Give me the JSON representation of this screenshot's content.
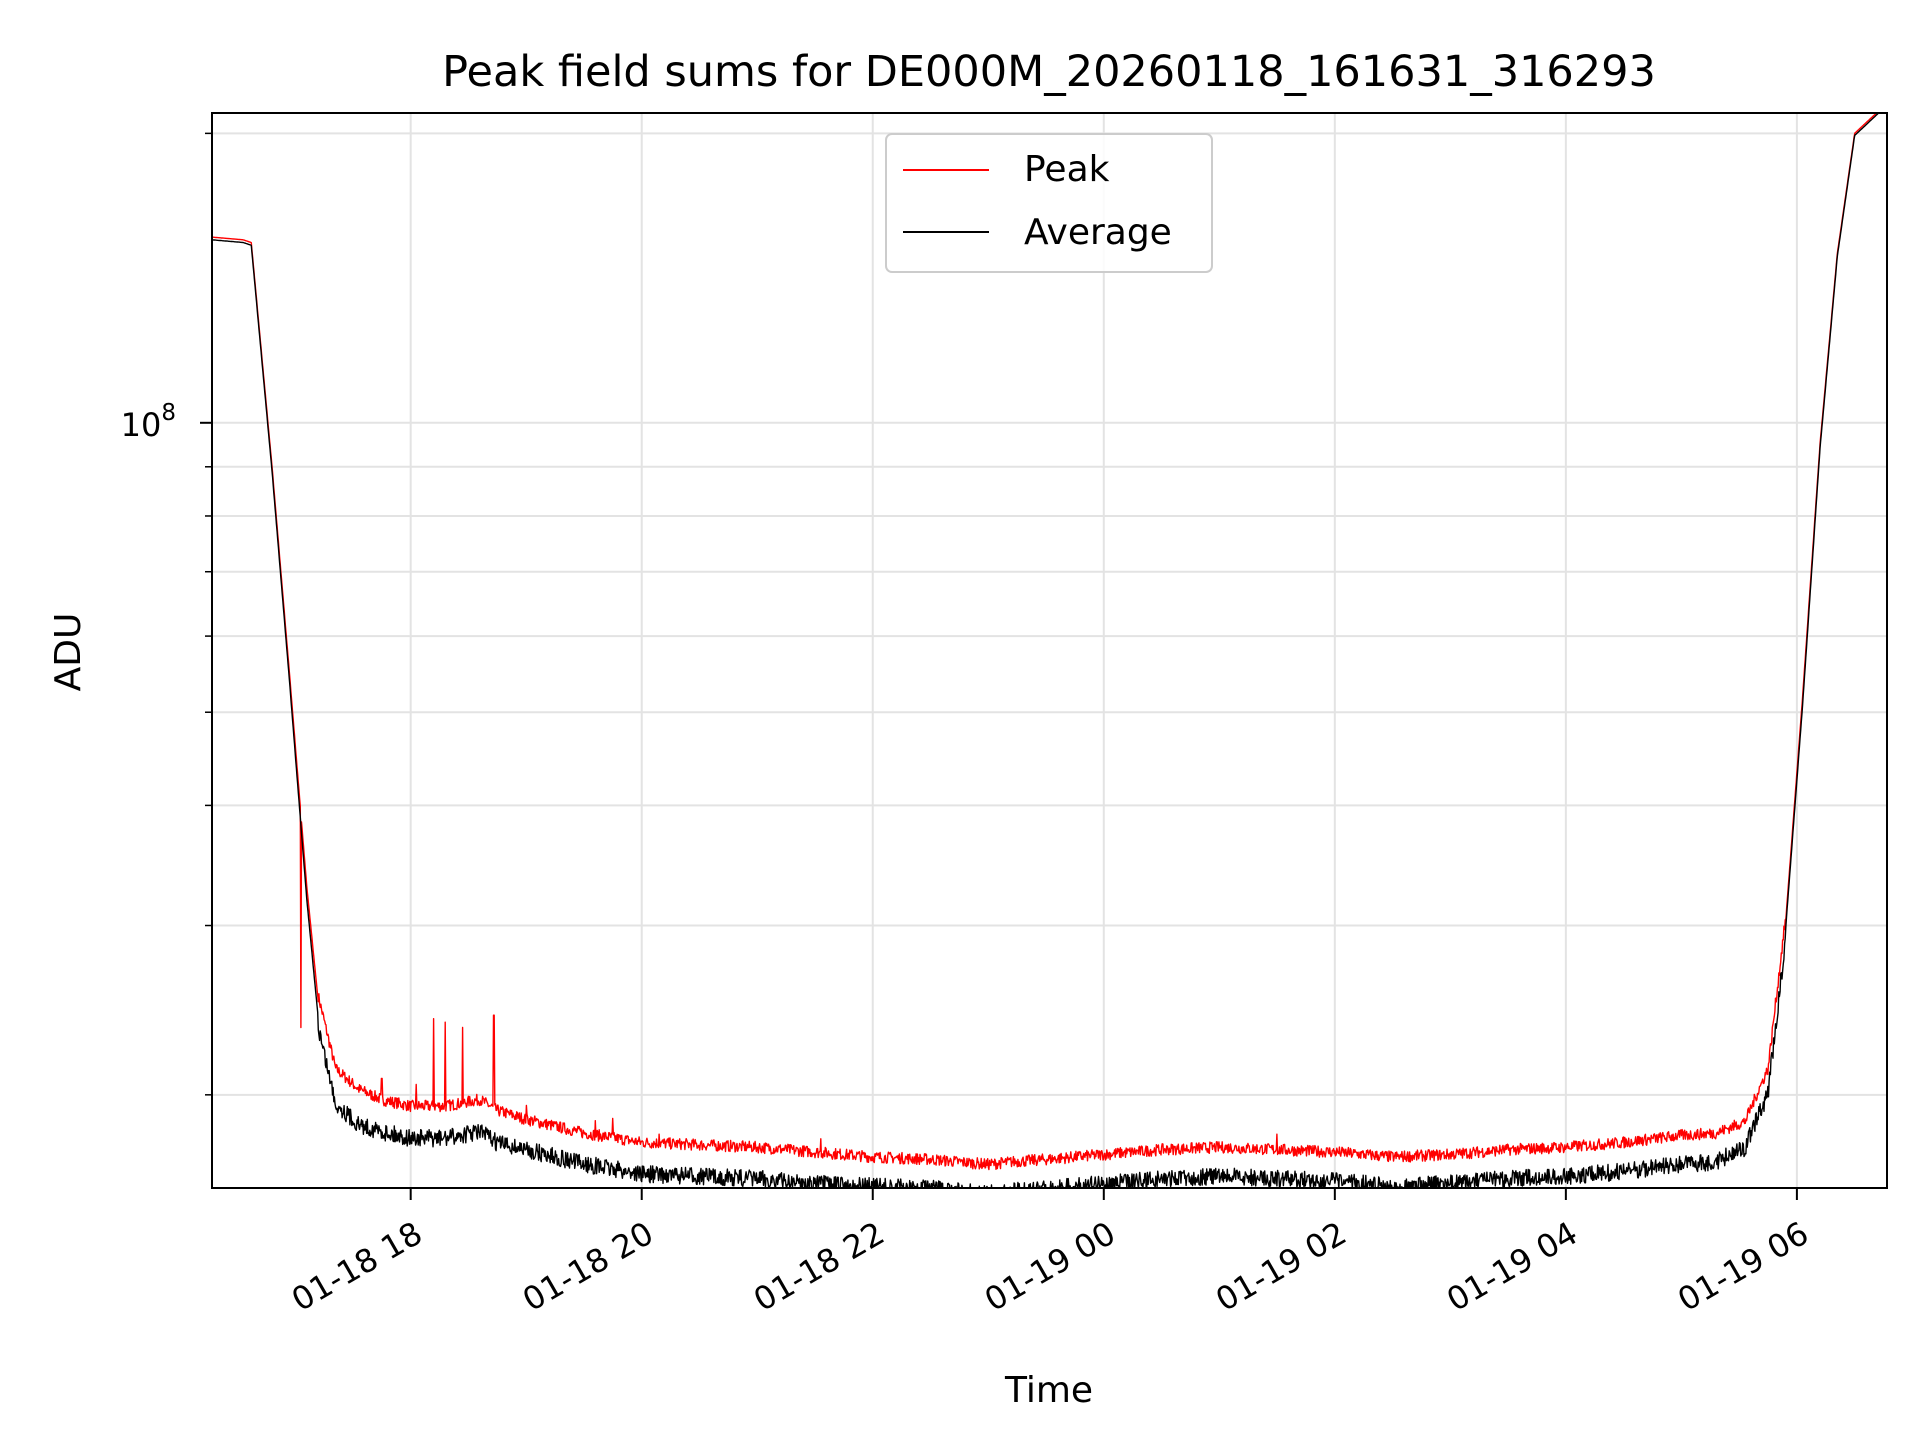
{
  "chart_data": {
    "type": "line",
    "title": "Peak field sums for DE000M_20260118_161631_316293",
    "xlabel": "Time",
    "ylabel": "ADU",
    "y_scale": "log",
    "y_major_tick_label": {
      "base": "10",
      "exponent": "8",
      "value": 100000000
    },
    "ylim": [
      16000000,
      210000000
    ],
    "xlim_hours_from_0118_0000": [
      16.28,
      30.78
    ],
    "x_ticks": [
      {
        "hour": 18,
        "label": "01-18 18"
      },
      {
        "hour": 20,
        "label": "01-18 20"
      },
      {
        "hour": 22,
        "label": "01-18 22"
      },
      {
        "hour": 24,
        "label": "01-19 00"
      },
      {
        "hour": 26,
        "label": "01-19 02"
      },
      {
        "hour": 28,
        "label": "01-19 04"
      },
      {
        "hour": 30,
        "label": "01-19 06"
      }
    ],
    "grid": true,
    "legend": {
      "position": "top-center",
      "entries": [
        "Peak",
        "Average"
      ]
    },
    "series": [
      {
        "name": "Peak",
        "color": "#ff0000",
        "x_hours": [
          16.28,
          16.55,
          16.62,
          16.8,
          16.95,
          17.1,
          17.2,
          17.35,
          17.55,
          17.75,
          18.0,
          18.3,
          18.6,
          18.75,
          19.0,
          19.5,
          20.0,
          20.5,
          21.0,
          21.5,
          22.0,
          22.5,
          23.0,
          23.2,
          23.5,
          24.0,
          24.5,
          25.0,
          25.5,
          26.0,
          26.5,
          27.0,
          27.5,
          28.0,
          28.5,
          29.0,
          29.3,
          29.55,
          29.75,
          29.9,
          30.05,
          30.2,
          30.35,
          30.5,
          30.78
        ],
        "values": [
          156000000,
          155000000,
          154000000,
          90000000,
          55000000,
          33000000,
          25000000,
          21000000,
          20000000,
          19500000,
          19200000,
          19200000,
          19500000,
          19000000,
          18600000,
          18000000,
          17600000,
          17500000,
          17400000,
          17200000,
          17000000,
          16900000,
          16700000,
          16800000,
          16900000,
          17100000,
          17300000,
          17400000,
          17300000,
          17200000,
          17000000,
          17100000,
          17300000,
          17400000,
          17600000,
          17900000,
          18000000,
          18500000,
          21000000,
          30000000,
          52000000,
          95000000,
          150000000,
          200000000,
          215000000
        ],
        "spikes": [
          {
            "hour": 17.05,
            "value": 23500000
          },
          {
            "hour": 17.75,
            "value": 20800000
          },
          {
            "hour": 18.05,
            "value": 20500000
          },
          {
            "hour": 18.2,
            "value": 24000000
          },
          {
            "hour": 18.3,
            "value": 23800000
          },
          {
            "hour": 18.45,
            "value": 23500000
          },
          {
            "hour": 18.72,
            "value": 24200000
          },
          {
            "hour": 19.0,
            "value": 19500000
          },
          {
            "hour": 19.6,
            "value": 18800000
          },
          {
            "hour": 19.75,
            "value": 18900000
          },
          {
            "hour": 20.15,
            "value": 18200000
          },
          {
            "hour": 21.55,
            "value": 18000000
          },
          {
            "hour": 25.5,
            "value": 18200000
          }
        ]
      },
      {
        "name": "Average",
        "color": "#000000",
        "x_hours": [
          16.28,
          16.55,
          16.62,
          16.8,
          16.95,
          17.1,
          17.2,
          17.35,
          17.55,
          17.75,
          18.0,
          18.3,
          18.6,
          18.75,
          19.0,
          19.5,
          20.0,
          20.5,
          21.0,
          21.5,
          22.0,
          22.5,
          23.0,
          23.2,
          23.5,
          24.0,
          24.5,
          25.0,
          25.5,
          26.0,
          26.5,
          27.0,
          27.5,
          28.0,
          28.5,
          29.0,
          29.3,
          29.55,
          29.75,
          29.9,
          30.05,
          30.2,
          30.35,
          30.5,
          30.78
        ],
        "values": [
          155000000,
          154000000,
          153000000,
          89000000,
          54000000,
          32000000,
          24000000,
          20000000,
          19000000,
          18700000,
          18400000,
          18400000,
          18700000,
          18200000,
          17900000,
          17300000,
          16900000,
          16800000,
          16700000,
          16500000,
          16400000,
          16300000,
          16100000,
          16200000,
          16300000,
          16500000,
          16700000,
          16800000,
          16700000,
          16600000,
          16400000,
          16500000,
          16700000,
          16800000,
          17000000,
          17300000,
          17400000,
          18000000,
          20500000,
          29500000,
          51000000,
          94000000,
          149000000,
          199000000,
          214000000
        ]
      }
    ]
  }
}
